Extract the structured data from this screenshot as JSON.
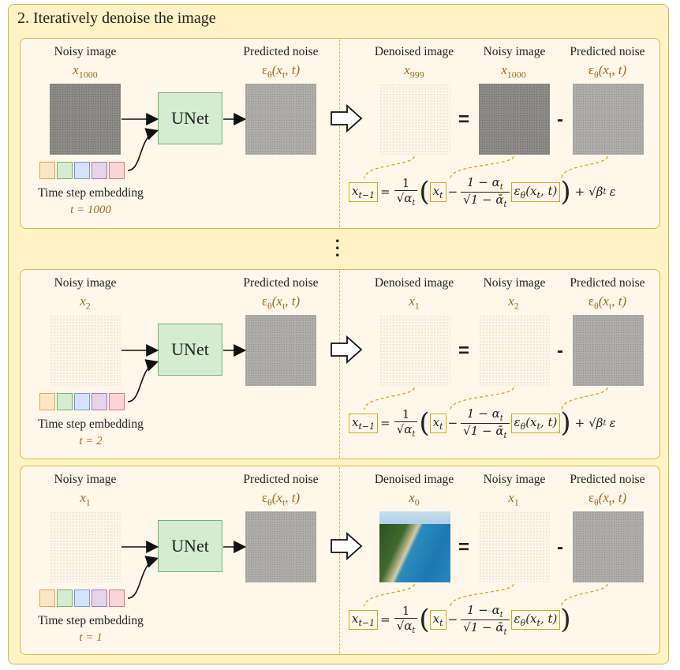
{
  "title": "2. Iteratively denoise the image",
  "labels": {
    "noisy_image": "Noisy image",
    "predicted_noise": "Predicted noise",
    "denoised_image": "Denoised image",
    "unet": "UNet",
    "time_step_embedding": "Time step embedding",
    "eps_symbol": "ε",
    "theta": "θ",
    "eps_args": "(x",
    "eps_sub": "t",
    "eps_close": ", t)",
    "equals": "=",
    "minus": "-"
  },
  "panels": [
    {
      "input_var": "x",
      "input_sub": "1000",
      "t_label": "t = 1000",
      "denoised_var": "x",
      "denoised_sub": "999",
      "rhs_var": "x",
      "rhs_sub": "1000",
      "has_noise_term": true
    },
    {
      "input_var": "x",
      "input_sub": "2",
      "t_label": "t = 2",
      "denoised_var": "x",
      "denoised_sub": "1",
      "rhs_var": "x",
      "rhs_sub": "2",
      "has_noise_term": true
    },
    {
      "input_var": "x",
      "input_sub": "1",
      "t_label": "t = 1",
      "denoised_var": "x",
      "denoised_sub": "0",
      "rhs_var": "x",
      "rhs_sub": "1",
      "has_noise_term": false
    }
  ],
  "formula": {
    "lhs": "x",
    "lhs_sub": "t−1",
    "eq": "=",
    "one": "1",
    "sqrt_alpha": "√α",
    "alpha_sub": "t",
    "xt": "x",
    "xt_sub": "t",
    "minus": "−",
    "one_minus_alpha": "1 − α",
    "sqrt_one_minus_alpha_bar": "√1 − ᾱ",
    "eps_theta": "ε",
    "theta": "θ",
    "eps_args": "(x",
    "eps_args_sub": "t",
    "eps_args_close": ", t)",
    "plus": "+",
    "sqrt_beta": "√β",
    "beta_sub": "t",
    "epsilon": "ε"
  },
  "embedding_colors": [
    {
      "fill": "#fde6c8",
      "stroke": "#d9a94a"
    },
    {
      "fill": "#d5ecd1",
      "stroke": "#72b56a"
    },
    {
      "fill": "#d6e2fb",
      "stroke": "#7a97d9"
    },
    {
      "fill": "#e6d3ec",
      "stroke": "#a67ab8"
    },
    {
      "fill": "#fad4d6",
      "stroke": "#d9767f"
    }
  ]
}
